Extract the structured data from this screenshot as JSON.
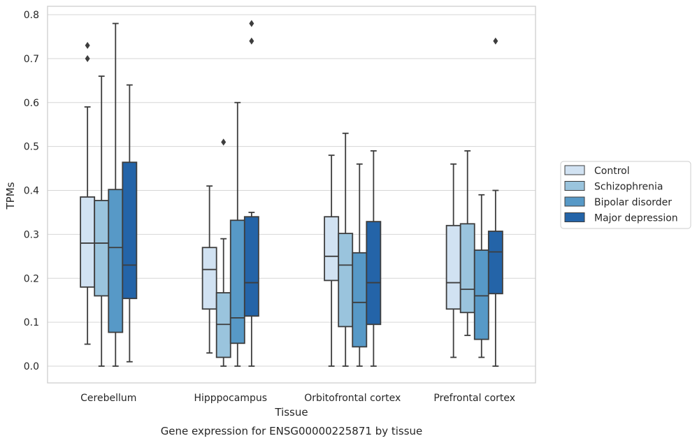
{
  "chart_data": {
    "type": "boxplot",
    "caption": "Gene expression for ENSG00000225871 by tissue",
    "xlabel": "Tissue",
    "ylabel": "TPMs",
    "ylim": [
      -0.04,
      0.82
    ],
    "yticks": [
      "0.0",
      "0.1",
      "0.2",
      "0.3",
      "0.4",
      "0.5",
      "0.6",
      "0.7",
      "0.8"
    ],
    "grid": true,
    "legend": "right",
    "categories": [
      "Cerebellum",
      "Hipppocampus",
      "Orbitofrontal cortex",
      "Prefrontal cortex"
    ],
    "series": [
      {
        "name": "Control",
        "color": "#d1e2f2",
        "boxes": [
          {
            "whislo": 0.05,
            "q1": 0.18,
            "med": 0.28,
            "q3": 0.385,
            "whishi": 0.59,
            "fliers": [
              0.7,
              0.73
            ]
          },
          {
            "whislo": 0.03,
            "q1": 0.13,
            "med": 0.22,
            "q3": 0.27,
            "whishi": 0.41,
            "fliers": []
          },
          {
            "whislo": 0.0,
            "q1": 0.195,
            "med": 0.25,
            "q3": 0.34,
            "whishi": 0.48,
            "fliers": []
          },
          {
            "whislo": 0.02,
            "q1": 0.13,
            "med": 0.19,
            "q3": 0.32,
            "whishi": 0.46,
            "fliers": []
          }
        ]
      },
      {
        "name": "Schizophrenia",
        "color": "#9ac4dd",
        "boxes": [
          {
            "whislo": 0.0,
            "q1": 0.16,
            "med": 0.28,
            "q3": 0.377,
            "whishi": 0.66,
            "fliers": []
          },
          {
            "whislo": 0.0,
            "q1": 0.02,
            "med": 0.095,
            "q3": 0.167,
            "whishi": 0.29,
            "fliers": [
              0.51
            ]
          },
          {
            "whislo": 0.0,
            "q1": 0.09,
            "med": 0.23,
            "q3": 0.302,
            "whishi": 0.53,
            "fliers": []
          },
          {
            "whislo": 0.07,
            "q1": 0.122,
            "med": 0.175,
            "q3": 0.324,
            "whishi": 0.49,
            "fliers": []
          }
        ]
      },
      {
        "name": "Bipolar disorder",
        "color": "#5799c7",
        "boxes": [
          {
            "whislo": 0.0,
            "q1": 0.077,
            "med": 0.27,
            "q3": 0.402,
            "whishi": 0.78,
            "fliers": []
          },
          {
            "whislo": 0.0,
            "q1": 0.052,
            "med": 0.11,
            "q3": 0.332,
            "whishi": 0.6,
            "fliers": []
          },
          {
            "whislo": 0.0,
            "q1": 0.044,
            "med": 0.145,
            "q3": 0.258,
            "whishi": 0.46,
            "fliers": []
          },
          {
            "whislo": 0.02,
            "q1": 0.061,
            "med": 0.16,
            "q3": 0.264,
            "whishi": 0.39,
            "fliers": []
          }
        ]
      },
      {
        "name": "Major depression",
        "color": "#2464a8",
        "boxes": [
          {
            "whislo": 0.01,
            "q1": 0.154,
            "med": 0.23,
            "q3": 0.464,
            "whishi": 0.64,
            "fliers": []
          },
          {
            "whislo": 0.0,
            "q1": 0.114,
            "med": 0.19,
            "q3": 0.34,
            "whishi": 0.35,
            "fliers": [
              0.74,
              0.78
            ]
          },
          {
            "whislo": 0.0,
            "q1": 0.095,
            "med": 0.19,
            "q3": 0.329,
            "whishi": 0.49,
            "fliers": []
          },
          {
            "whislo": 0.0,
            "q1": 0.165,
            "med": 0.26,
            "q3": 0.307,
            "whishi": 0.4,
            "fliers": [
              0.74
            ]
          }
        ]
      }
    ]
  }
}
